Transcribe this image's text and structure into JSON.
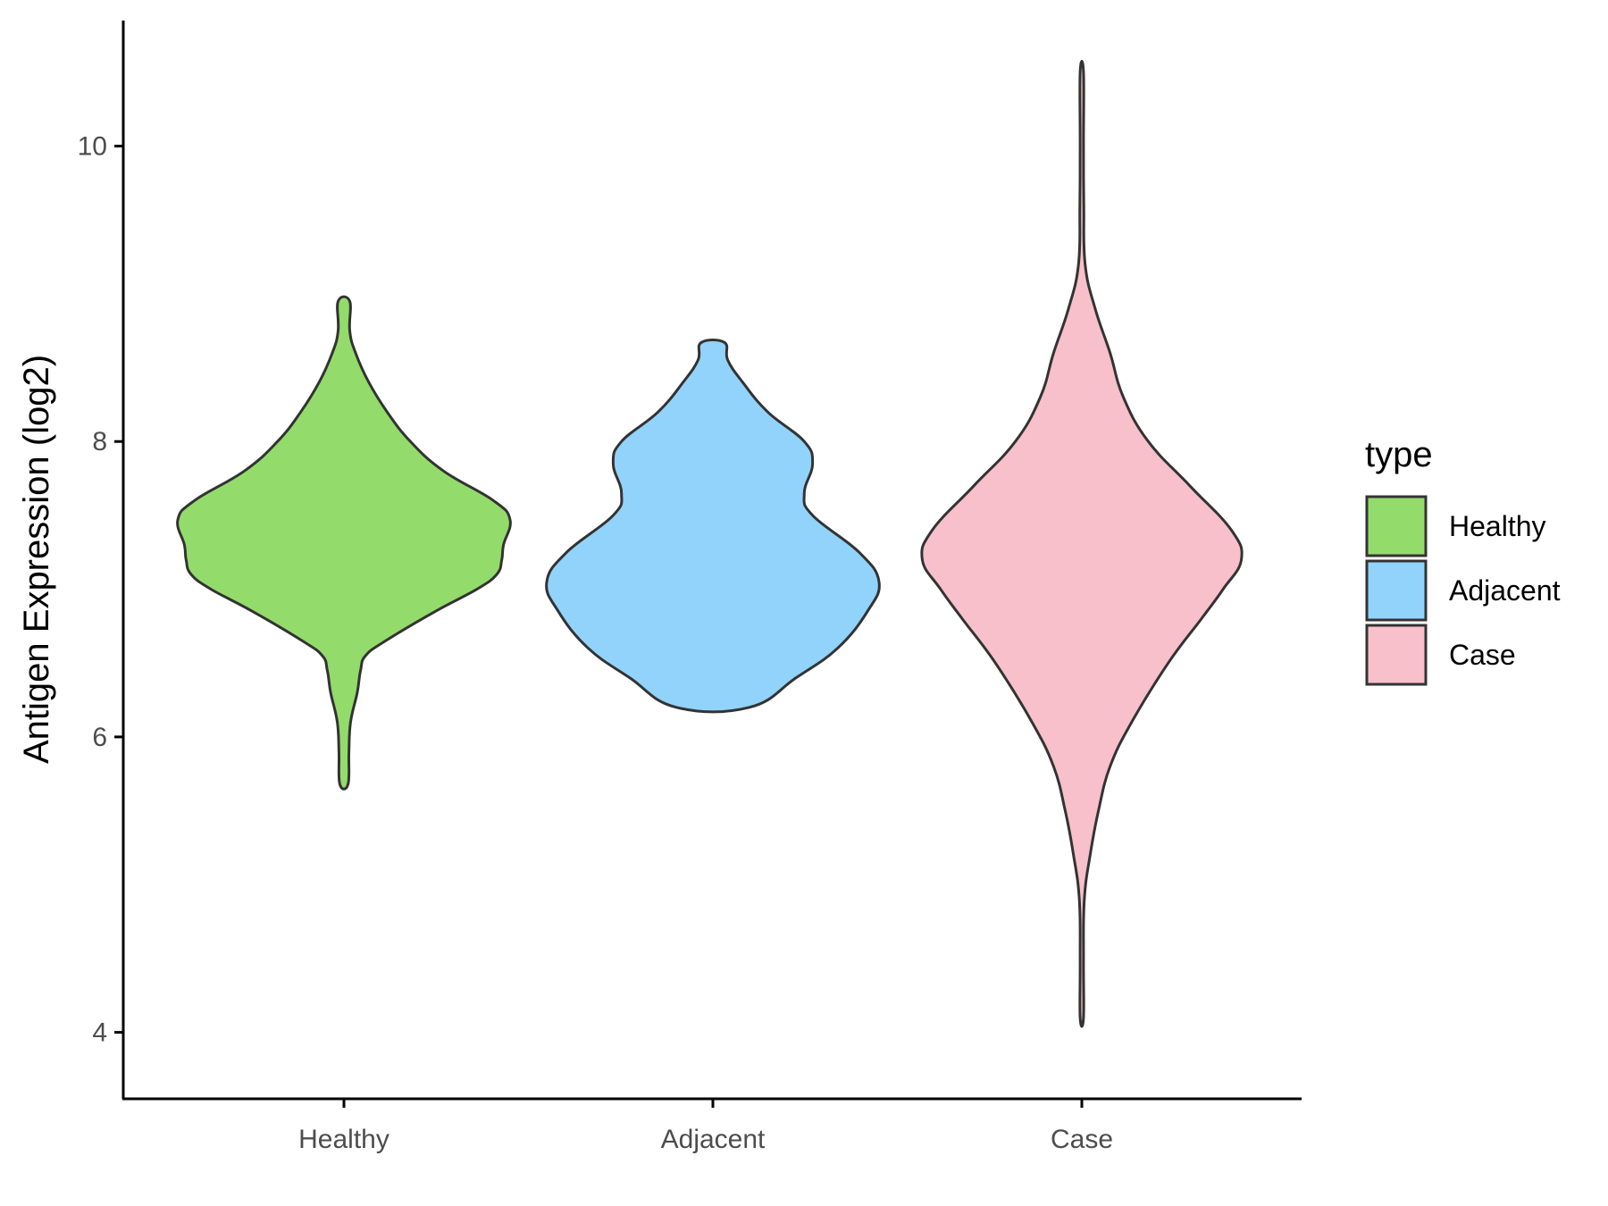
{
  "chart_data": {
    "type": "violin",
    "ylabel": "Antigen Expression (log2)",
    "xlabel": "",
    "ylim": [
      3.55,
      10.85
    ],
    "yticks": [
      4,
      6,
      8,
      10
    ],
    "categories": [
      "Healthy",
      "Adjacent",
      "Case"
    ],
    "grid": false,
    "legend": {
      "title": "type",
      "position": "right",
      "entries": [
        "Healthy",
        "Adjacent",
        "Case"
      ]
    },
    "series": [
      {
        "category": "Healthy",
        "color": "#93DC6B",
        "min": 5.68,
        "max": 8.95,
        "density_profile": [
          [
            5.68,
            0.025
          ],
          [
            5.9,
            0.03
          ],
          [
            6.1,
            0.04
          ],
          [
            6.3,
            0.08
          ],
          [
            6.45,
            0.1
          ],
          [
            6.55,
            0.13
          ],
          [
            6.65,
            0.25
          ],
          [
            6.85,
            0.55
          ],
          [
            7.0,
            0.8
          ],
          [
            7.1,
            0.92
          ],
          [
            7.2,
            0.95
          ],
          [
            7.3,
            0.96
          ],
          [
            7.47,
            1.0
          ],
          [
            7.6,
            0.9
          ],
          [
            7.8,
            0.6
          ],
          [
            8.0,
            0.4
          ],
          [
            8.2,
            0.26
          ],
          [
            8.4,
            0.15
          ],
          [
            8.6,
            0.07
          ],
          [
            8.75,
            0.035
          ],
          [
            8.95,
            0.035
          ]
        ]
      },
      {
        "category": "Adjacent",
        "color": "#92D3FC",
        "min": 6.2,
        "max": 8.67,
        "density_profile": [
          [
            6.2,
            0.22
          ],
          [
            6.4,
            0.5
          ],
          [
            6.6,
            0.75
          ],
          [
            6.85,
            0.93
          ],
          [
            7.05,
            1.0
          ],
          [
            7.25,
            0.88
          ],
          [
            7.5,
            0.6
          ],
          [
            7.65,
            0.55
          ],
          [
            7.85,
            0.6
          ],
          [
            8.0,
            0.55
          ],
          [
            8.2,
            0.33
          ],
          [
            8.4,
            0.18
          ],
          [
            8.55,
            0.09
          ],
          [
            8.67,
            0.07
          ]
        ]
      },
      {
        "category": "Case",
        "color": "#F7C0CB",
        "min": 4.1,
        "max": 10.5,
        "density_profile": [
          [
            4.1,
            0.01
          ],
          [
            4.5,
            0.01
          ],
          [
            4.9,
            0.015
          ],
          [
            5.2,
            0.05
          ],
          [
            5.5,
            0.1
          ],
          [
            5.8,
            0.17
          ],
          [
            6.1,
            0.3
          ],
          [
            6.5,
            0.52
          ],
          [
            6.8,
            0.72
          ],
          [
            7.0,
            0.85
          ],
          [
            7.2,
            0.96
          ],
          [
            7.4,
            0.9
          ],
          [
            7.7,
            0.65
          ],
          [
            8.0,
            0.4
          ],
          [
            8.3,
            0.25
          ],
          [
            8.6,
            0.17
          ],
          [
            8.9,
            0.08
          ],
          [
            9.2,
            0.02
          ],
          [
            9.6,
            0.012
          ],
          [
            10.0,
            0.01
          ],
          [
            10.5,
            0.01
          ]
        ]
      }
    ]
  }
}
